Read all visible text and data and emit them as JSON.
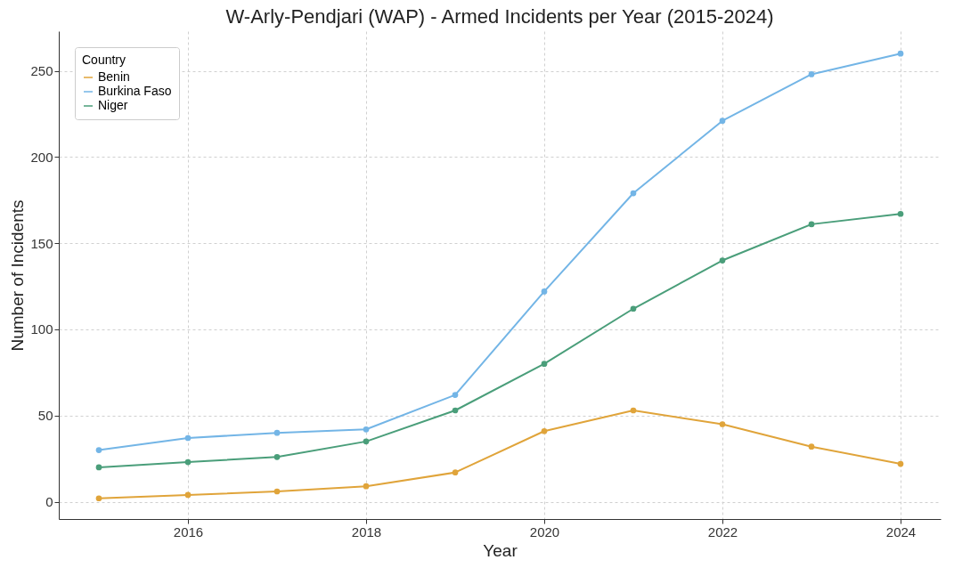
{
  "chart_data": {
    "type": "line",
    "title": "W-Arly-Pendjari (WAP) - Armed Incidents per Year (2015-2024)",
    "xlabel": "Year",
    "ylabel": "Number of Incidents",
    "legend_title": "Country",
    "x": [
      2015,
      2016,
      2017,
      2018,
      2019,
      2020,
      2021,
      2022,
      2023,
      2024
    ],
    "series": [
      {
        "name": "Benin",
        "color": "#e0a43a",
        "values": [
          2,
          4,
          6,
          9,
          17,
          41,
          53,
          45,
          32,
          22
        ]
      },
      {
        "name": "Burkina Faso",
        "color": "#73b5e6",
        "values": [
          30,
          37,
          40,
          42,
          62,
          122,
          179,
          221,
          248,
          260
        ]
      },
      {
        "name": "Niger",
        "color": "#4a9e7a",
        "values": [
          20,
          23,
          26,
          35,
          53,
          80,
          112,
          140,
          161,
          167
        ]
      }
    ],
    "xlim": [
      2014.55,
      2024.45
    ],
    "xticks": [
      2016,
      2018,
      2020,
      2022,
      2024
    ],
    "ylim": [
      -10,
      273
    ],
    "yticks": [
      0,
      50,
      100,
      150,
      200,
      250
    ],
    "grid": true,
    "legend": "top left",
    "marker": "circle",
    "line_style": "solid"
  }
}
